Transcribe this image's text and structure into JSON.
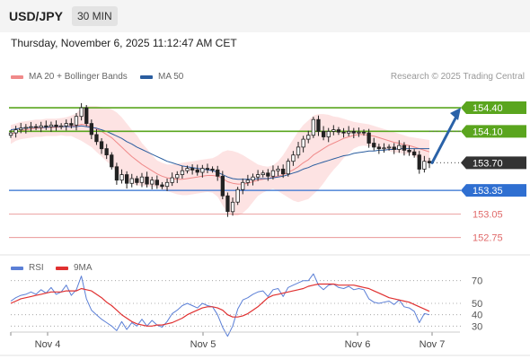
{
  "header": {
    "symbol": "USD/JPY",
    "interval": "30 MIN"
  },
  "datetime": "Thursday, November 6, 2025 11:12:47 AM CET",
  "legend": [
    {
      "label": "MA 20 + Bollinger Bands",
      "color": "#f08a8a"
    },
    {
      "label": "MA 50",
      "color": "#2a5d9f"
    }
  ],
  "credit": "Research © 2025 Trading Central",
  "rsi_legend": [
    {
      "label": "RSI",
      "color": "#5b7fd6"
    },
    {
      "label": "9MA",
      "color": "#e03030"
    }
  ],
  "colors": {
    "resistance": "#5aa51e",
    "support": "#2f6fd1",
    "minor_support": "#e06a6a",
    "current": "#333333",
    "bull": "#ffffff",
    "bear": "#222222",
    "forecast": "#2a62a8",
    "bb_fill": "#fde0e0",
    "ma20": "#f08a8a",
    "ma50": "#2a5d9f",
    "rsi": "#5b7fd6",
    "rsi_ma": "#e03030"
  },
  "chart_data": [
    {
      "type": "candlestick",
      "ylim": [
        152.53,
        154.72
      ],
      "x_ticks": [
        "Nov 4",
        "Nov 5",
        "Nov 6",
        "Nov 7"
      ],
      "levels": [
        {
          "value": 154.4,
          "label": "154.40",
          "kind": "resistance"
        },
        {
          "value": 154.1,
          "label": "154.10",
          "kind": "resistance"
        },
        {
          "value": 153.7,
          "label": "153.70",
          "kind": "current"
        },
        {
          "value": 153.35,
          "label": "153.35",
          "kind": "support"
        },
        {
          "value": 153.05,
          "label": "153.05",
          "kind": "minor_support"
        },
        {
          "value": 152.75,
          "label": "152.75",
          "kind": "minor_support"
        }
      ],
      "close": [
        154.08,
        154.12,
        154.14,
        154.15,
        154.16,
        154.15,
        154.17,
        154.16,
        154.18,
        154.16,
        154.17,
        154.2,
        154.18,
        154.29,
        154.4,
        154.2,
        154.06,
        153.97,
        153.88,
        153.8,
        153.65,
        153.48,
        153.55,
        153.44,
        153.5,
        153.45,
        153.52,
        153.43,
        153.48,
        153.42,
        153.4,
        153.45,
        153.51,
        153.55,
        153.6,
        153.63,
        153.61,
        153.58,
        153.63,
        153.62,
        153.61,
        153.53,
        153.28,
        153.08,
        153.2,
        153.36,
        153.45,
        153.48,
        153.52,
        153.55,
        153.57,
        153.53,
        153.6,
        153.62,
        153.56,
        153.72,
        153.8,
        153.9,
        154.0,
        154.05,
        154.25,
        154.1,
        154.03,
        154.1,
        154.12,
        154.09,
        154.08,
        154.1,
        154.08,
        154.09,
        154.08,
        153.95,
        153.9,
        153.88,
        153.89,
        153.9,
        153.87,
        153.92,
        153.86,
        153.84,
        153.8,
        153.62,
        153.72,
        153.7
      ],
      "ma20": [
        154.06,
        154.09,
        154.11,
        154.12,
        154.13,
        154.14,
        154.14,
        154.15,
        154.15,
        154.15,
        154.16,
        154.16,
        154.17,
        154.17,
        154.19,
        154.18,
        154.16,
        154.13,
        154.1,
        154.06,
        154.02,
        153.96,
        153.9,
        153.84,
        153.78,
        153.73,
        153.68,
        153.64,
        153.6,
        153.56,
        153.53,
        153.51,
        153.5,
        153.49,
        153.49,
        153.5,
        153.51,
        153.52,
        153.53,
        153.54,
        153.54,
        153.53,
        153.5,
        153.46,
        153.44,
        153.43,
        153.43,
        153.44,
        153.46,
        153.48,
        153.49,
        153.5,
        153.52,
        153.53,
        153.55,
        153.58,
        153.61,
        153.65,
        153.7,
        153.74,
        153.8,
        153.84,
        153.88,
        153.92,
        153.95,
        153.98,
        154.01,
        154.03,
        154.05,
        154.06,
        154.06,
        154.05,
        154.04,
        154.02,
        154.0,
        153.98,
        153.96,
        153.95,
        153.93,
        153.92,
        153.9,
        153.88,
        153.86,
        153.84
      ],
      "bb_upper": [
        154.18,
        154.2,
        154.22,
        154.23,
        154.24,
        154.25,
        154.25,
        154.26,
        154.26,
        154.26,
        154.27,
        154.28,
        154.3,
        154.33,
        154.4,
        154.42,
        154.42,
        154.42,
        154.41,
        154.4,
        154.38,
        154.34,
        154.28,
        154.2,
        154.12,
        154.05,
        153.95,
        153.88,
        153.8,
        153.73,
        153.7,
        153.68,
        153.68,
        153.69,
        153.7,
        153.71,
        153.72,
        153.73,
        153.74,
        153.75,
        153.76,
        153.79,
        153.84,
        153.86,
        153.85,
        153.83,
        153.8,
        153.76,
        153.72,
        153.68,
        153.66,
        153.65,
        153.67,
        153.72,
        153.8,
        153.9,
        154.0,
        154.1,
        154.18,
        154.24,
        154.3,
        154.32,
        154.32,
        154.31,
        154.29,
        154.28,
        154.26,
        154.24,
        154.22,
        154.21,
        154.2,
        154.19,
        154.17,
        154.15,
        154.13,
        154.11,
        154.09,
        154.07,
        154.05,
        154.03,
        154.02,
        154.01,
        154.0,
        153.99
      ],
      "bb_lower": [
        153.94,
        153.98,
        154.0,
        154.01,
        154.02,
        154.03,
        154.03,
        154.04,
        154.04,
        154.04,
        154.05,
        154.04,
        154.04,
        154.01,
        153.98,
        153.94,
        153.9,
        153.84,
        153.78,
        153.72,
        153.66,
        153.58,
        153.52,
        153.48,
        153.44,
        153.41,
        153.41,
        153.4,
        153.4,
        153.39,
        153.36,
        153.34,
        153.32,
        153.3,
        153.29,
        153.29,
        153.3,
        153.31,
        153.32,
        153.33,
        153.32,
        153.27,
        153.16,
        153.06,
        153.03,
        153.03,
        153.06,
        153.12,
        153.2,
        153.28,
        153.32,
        153.35,
        153.37,
        153.34,
        153.3,
        153.26,
        153.22,
        153.2,
        153.22,
        153.24,
        153.3,
        153.36,
        153.44,
        153.53,
        153.61,
        153.68,
        153.76,
        153.82,
        153.88,
        153.91,
        153.92,
        153.91,
        153.91,
        153.89,
        153.87,
        153.85,
        153.83,
        153.83,
        153.81,
        153.81,
        153.78,
        153.75,
        153.72,
        153.69
      ],
      "ma50": [
        154.12,
        154.13,
        154.14,
        154.14,
        154.15,
        154.15,
        154.15,
        154.15,
        154.16,
        154.16,
        154.16,
        154.16,
        154.16,
        154.16,
        154.17,
        154.16,
        154.15,
        154.14,
        154.12,
        154.1,
        154.07,
        154.04,
        154.01,
        153.97,
        153.94,
        153.9,
        153.87,
        153.84,
        153.81,
        153.78,
        153.75,
        153.72,
        153.7,
        153.68,
        153.66,
        153.65,
        153.64,
        153.63,
        153.62,
        153.61,
        153.6,
        153.58,
        153.55,
        153.52,
        153.5,
        153.49,
        153.49,
        153.49,
        153.49,
        153.5,
        153.5,
        153.5,
        153.51,
        153.52,
        153.53,
        153.55,
        153.57,
        153.59,
        153.62,
        153.64,
        153.67,
        153.69,
        153.71,
        153.73,
        153.75,
        153.77,
        153.79,
        153.8,
        153.82,
        153.83,
        153.84,
        153.85,
        153.85,
        153.86,
        153.86,
        153.87,
        153.87,
        153.88,
        153.88,
        153.88,
        153.88,
        153.88,
        153.88,
        153.88
      ]
    },
    {
      "type": "line",
      "title": "RSI",
      "ylim": [
        20,
        80
      ],
      "y_ticks": [
        70,
        50,
        40,
        30
      ],
      "series": [
        {
          "name": "RSI",
          "values": [
            52,
            55,
            57,
            58,
            60,
            58,
            62,
            59,
            64,
            58,
            60,
            66,
            57,
            62,
            74,
            54,
            44,
            40,
            36,
            33,
            30,
            26,
            34,
            27,
            33,
            30,
            36,
            30,
            35,
            31,
            29,
            34,
            41,
            44,
            48,
            50,
            48,
            46,
            50,
            48,
            47,
            40,
            29,
            21,
            30,
            45,
            53,
            55,
            58,
            60,
            61,
            56,
            62,
            63,
            56,
            64,
            66,
            68,
            70,
            70,
            76,
            66,
            62,
            66,
            67,
            64,
            63,
            65,
            62,
            63,
            62,
            54,
            51,
            50,
            51,
            52,
            49,
            53,
            47,
            46,
            43,
            33,
            41,
            40
          ]
        },
        {
          "name": "9MA",
          "values": [
            50,
            52,
            54,
            55,
            56,
            57,
            58,
            59,
            60,
            60,
            60,
            61,
            61,
            61,
            63,
            62,
            61,
            58,
            55,
            51,
            48,
            44,
            40,
            37,
            34,
            32,
            31,
            30,
            30,
            31,
            31,
            32,
            33,
            35,
            37,
            40,
            42,
            44,
            46,
            47,
            47,
            46,
            44,
            40,
            38,
            38,
            39,
            41,
            44,
            47,
            51,
            55,
            57,
            58,
            59,
            60,
            61,
            62,
            63,
            65,
            66,
            67,
            67,
            67,
            67,
            66,
            66,
            66,
            66,
            65,
            64,
            63,
            61,
            59,
            57,
            55,
            54,
            53,
            52,
            51,
            49,
            47,
            45,
            43
          ]
        }
      ]
    }
  ]
}
